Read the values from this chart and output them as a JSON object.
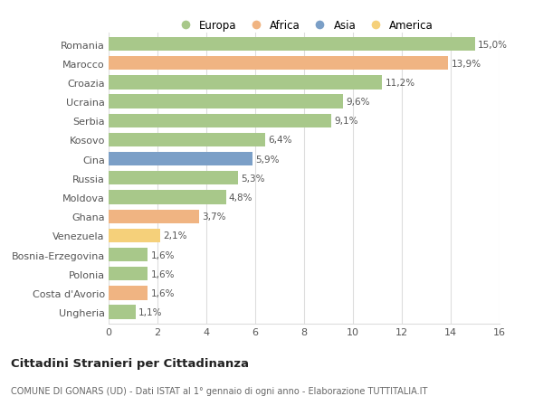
{
  "categories": [
    "Romania",
    "Marocco",
    "Croazia",
    "Ucraina",
    "Serbia",
    "Kosovo",
    "Cina",
    "Russia",
    "Moldova",
    "Ghana",
    "Venezuela",
    "Bosnia-Erzegovina",
    "Polonia",
    "Costa d'Avorio",
    "Ungheria"
  ],
  "values": [
    15.0,
    13.9,
    11.2,
    9.6,
    9.1,
    6.4,
    5.9,
    5.3,
    4.8,
    3.7,
    2.1,
    1.6,
    1.6,
    1.6,
    1.1
  ],
  "labels": [
    "15,0%",
    "13,9%",
    "11,2%",
    "9,6%",
    "9,1%",
    "6,4%",
    "5,9%",
    "5,3%",
    "4,8%",
    "3,7%",
    "2,1%",
    "1,6%",
    "1,6%",
    "1,6%",
    "1,1%"
  ],
  "continents": [
    "Europa",
    "Africa",
    "Europa",
    "Europa",
    "Europa",
    "Europa",
    "Asia",
    "Europa",
    "Europa",
    "Africa",
    "America",
    "Europa",
    "Europa",
    "Africa",
    "Europa"
  ],
  "colors": {
    "Europa": "#a8c88a",
    "Africa": "#f0b482",
    "Asia": "#7b9fc7",
    "America": "#f5d07a"
  },
  "legend_order": [
    "Europa",
    "Africa",
    "Asia",
    "America"
  ],
  "title": "Cittadini Stranieri per Cittadinanza",
  "subtitle": "COMUNE DI GONARS (UD) - Dati ISTAT al 1° gennaio di ogni anno - Elaborazione TUTTITALIA.IT",
  "xlim": [
    0,
    16
  ],
  "xticks": [
    0,
    2,
    4,
    6,
    8,
    10,
    12,
    14,
    16
  ],
  "bg_color": "#ffffff",
  "grid_color": "#dddddd",
  "bar_height": 0.72
}
